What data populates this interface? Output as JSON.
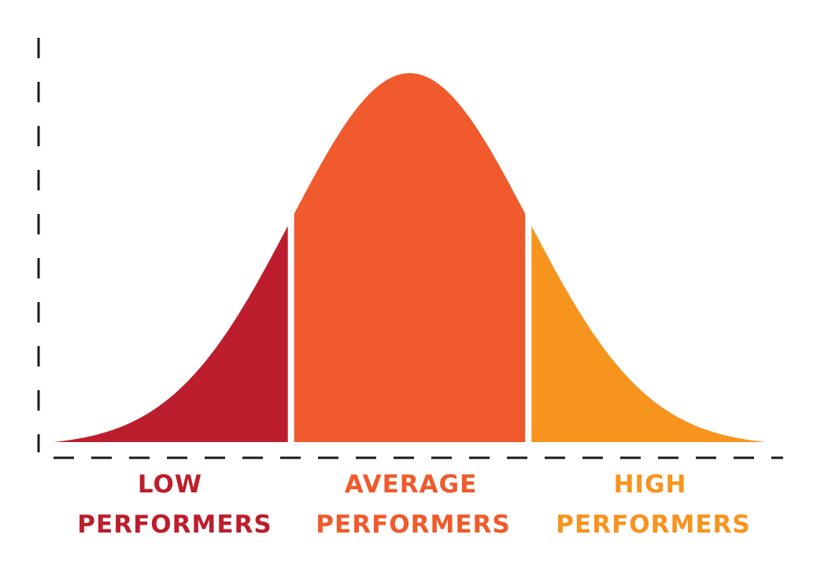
{
  "colors": {
    "low": "#BD1E2D",
    "average": "#F05A2C",
    "high": "#F7941E",
    "axis": "#1A1A1A",
    "background": "#FFFFFF"
  },
  "segments": [
    {
      "key": "low",
      "line1": "LOW",
      "line2": "PERFORMERS"
    },
    {
      "key": "average",
      "line1": "AVERAGE",
      "line2": "PERFORMERS"
    },
    {
      "key": "high",
      "line1": "HIGH",
      "line2": "PERFORMERS"
    }
  ],
  "chart_data": {
    "type": "area",
    "x_range": [
      -3,
      3
    ],
    "mean": 0,
    "std_dev": 1,
    "cutoffs": [
      -1,
      1
    ],
    "regions": [
      {
        "label": "LOW PERFORMERS",
        "from": -3,
        "to": -1
      },
      {
        "label": "AVERAGE PERFORMERS",
        "from": -1,
        "to": 1
      },
      {
        "label": "HIGH PERFORMERS",
        "from": 1,
        "to": 3
      }
    ],
    "axes": {
      "x_style": "dashed",
      "y_style": "dashed",
      "tick_labels": false
    },
    "grid": false,
    "legend": "none"
  }
}
